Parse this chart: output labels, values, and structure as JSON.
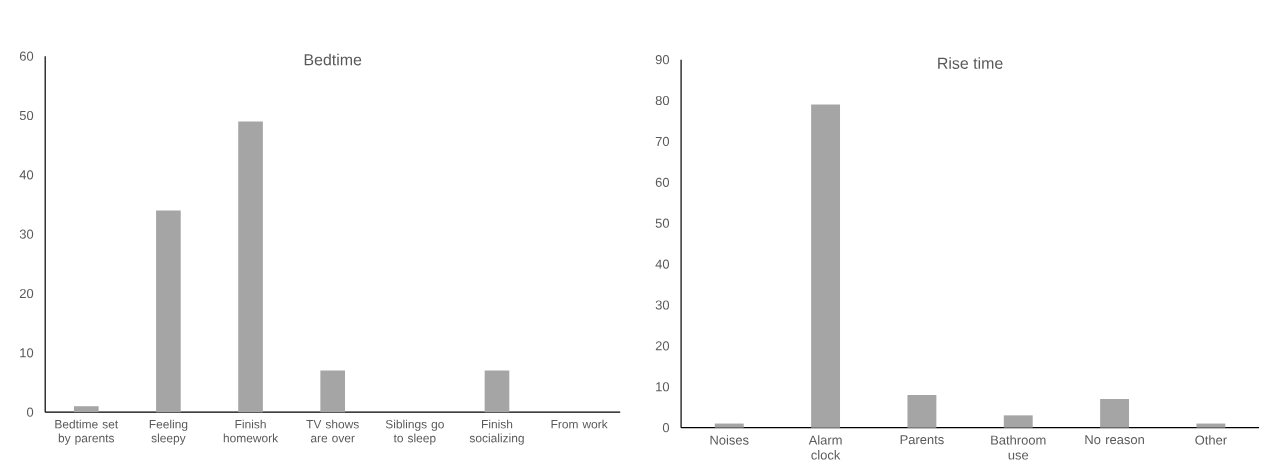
{
  "chart_data": [
    {
      "type": "bar",
      "title": "Bedtime",
      "categories": [
        "Bedtime set by parents",
        "Feeling sleepy",
        "Finish homework",
        "TV shows are over",
        "Siblings go to sleep",
        "Finish socializing",
        "From work"
      ],
      "values": [
        1,
        34,
        49,
        7,
        0,
        7,
        0
      ],
      "color": "#a5a5a5",
      "ylim": [
        0,
        60
      ],
      "yticks": [
        0,
        10,
        20,
        30,
        40,
        50,
        60
      ]
    },
    {
      "type": "bar",
      "title": "Rise time",
      "categories": [
        "Noises",
        "Alarm clock",
        "Parents",
        "Bathroom use",
        "No reason",
        "Other"
      ],
      "values": [
        1,
        79,
        8,
        3,
        7,
        1
      ],
      "color": "#a5a5a5",
      "ylim": [
        0,
        90
      ],
      "yticks": [
        0,
        10,
        20,
        30,
        40,
        50,
        60,
        70,
        80,
        90
      ]
    }
  ]
}
